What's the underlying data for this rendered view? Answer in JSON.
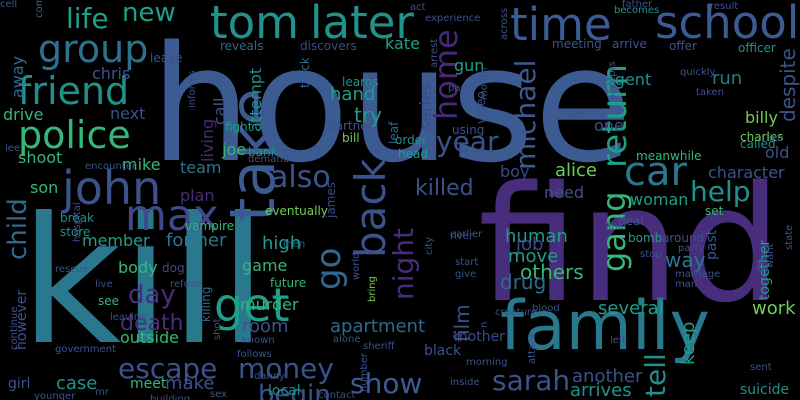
{
  "words": [
    {
      "text": "house",
      "color": "#3b5b92"
    },
    {
      "text": "kill",
      "color": "#2a788e"
    },
    {
      "text": "find",
      "color": "#472d7b"
    },
    {
      "text": "family",
      "color": "#2a788e"
    },
    {
      "text": "time",
      "color": "#3b5b92"
    },
    {
      "text": "school",
      "color": "#3b5b92"
    },
    {
      "text": "tom",
      "color": "#21918c"
    },
    {
      "text": "later",
      "color": "#21918c"
    },
    {
      "text": "group",
      "color": "#2c728e"
    },
    {
      "text": "friend",
      "color": "#21918c"
    },
    {
      "text": "police",
      "color": "#35b779"
    },
    {
      "text": "john",
      "color": "#3b528b"
    },
    {
      "text": "max",
      "color": "#3e4989"
    },
    {
      "text": "take",
      "color": "#3b5b92"
    },
    {
      "text": "get",
      "color": "#1f9e89"
    },
    {
      "text": "back",
      "color": "#3b528b"
    },
    {
      "text": "car",
      "color": "#2a788e"
    },
    {
      "text": "home",
      "color": "#482878"
    },
    {
      "text": "return",
      "color": "#1f9e89"
    },
    {
      "text": "gang",
      "color": "#35b779"
    },
    {
      "text": "help",
      "color": "#21918c"
    },
    {
      "text": "year",
      "color": "#3b528b"
    },
    {
      "text": "michael",
      "color": "#3b5b92"
    },
    {
      "text": "night",
      "color": "#472d7b"
    },
    {
      "text": "go",
      "color": "#31688e"
    },
    {
      "text": "also",
      "color": "#3b528b"
    },
    {
      "text": "escape",
      "color": "#3b528b"
    },
    {
      "text": "money",
      "color": "#3b528b"
    },
    {
      "text": "show",
      "color": "#3b5b92"
    },
    {
      "text": "sarah",
      "color": "#3b528b"
    },
    {
      "text": "tell",
      "color": "#21918c"
    },
    {
      "text": "begin",
      "color": "#3b528b"
    },
    {
      "text": "day",
      "color": "#472d7b"
    },
    {
      "text": "life",
      "color": "#1f9e89"
    },
    {
      "text": "new",
      "color": "#1f9e89"
    },
    {
      "text": "child",
      "color": "#31688e"
    },
    {
      "text": "killed",
      "color": "#3b528b"
    },
    {
      "text": "several",
      "color": "#1f9e89"
    },
    {
      "text": "another",
      "color": "#3b528b"
    },
    {
      "text": "arrives",
      "color": "#21918c"
    },
    {
      "text": "death",
      "color": "#472d7b"
    },
    {
      "text": "work",
      "color": "#6ece58"
    },
    {
      "text": "film",
      "color": "#3b528b"
    },
    {
      "text": "keep",
      "color": "#1f9e89"
    },
    {
      "text": "way",
      "color": "#2a788e"
    },
    {
      "text": "others",
      "color": "#35b779"
    },
    {
      "text": "drug",
      "color": "#31688e"
    },
    {
      "text": "human",
      "color": "#1f9e89"
    },
    {
      "text": "job",
      "color": "#3e4989"
    },
    {
      "text": "move",
      "color": "#1f9e89"
    },
    {
      "text": "apartment",
      "color": "#31688e"
    },
    {
      "text": "high",
      "color": "#1f9e89"
    },
    {
      "text": "room",
      "color": "#3b528b"
    },
    {
      "text": "former",
      "color": "#2a788e"
    },
    {
      "text": "make",
      "color": "#3b528b"
    },
    {
      "text": "case",
      "color": "#21918c"
    },
    {
      "text": "kate",
      "color": "#1f9e89"
    },
    {
      "text": "try",
      "color": "#1f9e89"
    },
    {
      "text": "hand",
      "color": "#1f9e89"
    },
    {
      "text": "alice",
      "color": "#6ece58"
    },
    {
      "text": "boy",
      "color": "#3e4989"
    },
    {
      "text": "woman",
      "color": "#1f9e89"
    },
    {
      "text": "character",
      "color": "#3b528b"
    },
    {
      "text": "billy",
      "color": "#6ece58"
    },
    {
      "text": "old",
      "color": "#3b528b"
    },
    {
      "text": "despite",
      "color": "#3b528b"
    },
    {
      "text": "agent",
      "color": "#21918c"
    },
    {
      "text": "run",
      "color": "#2a788e"
    },
    {
      "text": "one",
      "color": "#3b528b"
    },
    {
      "text": "need",
      "color": "#3b528b"
    },
    {
      "text": "series",
      "color": "#3e4989"
    },
    {
      "text": "gun",
      "color": "#1f9e89"
    },
    {
      "text": "plan",
      "color": "#472d7b"
    },
    {
      "text": "team",
      "color": "#2a788e"
    },
    {
      "text": "living",
      "color": "#482878"
    },
    {
      "text": "call",
      "color": "#3b528b"
    },
    {
      "text": "attempt",
      "color": "#21918c"
    },
    {
      "text": "joe",
      "color": "#35b779"
    },
    {
      "text": "chris",
      "color": "#3b528b"
    },
    {
      "text": "next",
      "color": "#3b528b"
    },
    {
      "text": "drive",
      "color": "#35b779"
    },
    {
      "text": "away",
      "color": "#31688e"
    },
    {
      "text": "shoot",
      "color": "#35b779"
    },
    {
      "text": "son",
      "color": "#35b779"
    },
    {
      "text": "mike",
      "color": "#35b779"
    },
    {
      "text": "member",
      "color": "#1f9e89"
    },
    {
      "text": "body",
      "color": "#35b779"
    },
    {
      "text": "game",
      "color": "#35b779"
    },
    {
      "text": "murder",
      "color": "#35b779"
    },
    {
      "text": "outside",
      "color": "#35b779"
    },
    {
      "text": "however",
      "color": "#3b528b"
    },
    {
      "text": "girl",
      "color": "#3b528b"
    },
    {
      "text": "meet",
      "color": "#35b779"
    },
    {
      "text": "local",
      "color": "#21918c"
    },
    {
      "text": "mother",
      "color": "#3e4989"
    },
    {
      "text": "black",
      "color": "#3b528b"
    },
    {
      "text": "suicide",
      "color": "#21918c"
    },
    {
      "text": "together",
      "color": "#1f9e89"
    },
    {
      "text": "past",
      "color": "#3b528b"
    },
    {
      "text": "dr",
      "color": "#3b528b"
    },
    {
      "text": "set",
      "color": "#35b779"
    },
    {
      "text": "bomb",
      "color": "#1f9e89"
    },
    {
      "text": "around",
      "color": "#3b528b"
    },
    {
      "text": "meanwhile",
      "color": "#35b779"
    },
    {
      "text": "deal",
      "color": "#3b528b"
    },
    {
      "text": "charles",
      "color": "#6ece58"
    },
    {
      "text": "called",
      "color": "#21918c"
    },
    {
      "text": "fight",
      "color": "#1f9e89"
    },
    {
      "text": "bank",
      "color": "#21918c"
    },
    {
      "text": "james",
      "color": "#3e4989"
    },
    {
      "text": "eventually",
      "color": "#6ece58"
    },
    {
      "text": "vampire",
      "color": "#35b779"
    },
    {
      "text": "break",
      "color": "#21918c"
    },
    {
      "text": "store",
      "color": "#21918c"
    },
    {
      "text": "dog",
      "color": "#3e4989"
    },
    {
      "text": "see",
      "color": "#35b779"
    },
    {
      "text": "killing",
      "color": "#31688e"
    },
    {
      "text": "future",
      "color": "#35b779"
    },
    {
      "text": "head",
      "color": "#1f9e89"
    },
    {
      "text": "leaf",
      "color": "#31688e"
    },
    {
      "text": "bill",
      "color": "#6ece58"
    },
    {
      "text": "order",
      "color": "#21918c"
    },
    {
      "text": "using",
      "color": "#3b528b"
    },
    {
      "text": "arrive",
      "color": "#3b528b"
    },
    {
      "text": "meeting",
      "color": "#3b528b"
    },
    {
      "text": "offer",
      "color": "#3b528b"
    },
    {
      "text": "officer",
      "color": "#21918c"
    },
    {
      "text": "reveals",
      "color": "#31688e"
    },
    {
      "text": "discovers",
      "color": "#3e4989"
    },
    {
      "text": "leave",
      "color": "#3b528b"
    },
    {
      "text": "learns",
      "color": "#21918c"
    },
    {
      "text": "truck",
      "color": "#31688e"
    },
    {
      "text": "partner",
      "color": "#3b528b"
    },
    {
      "text": "video",
      "color": "#3b528b"
    },
    {
      "text": "come",
      "color": "#31688e"
    },
    {
      "text": "act",
      "color": "#3b528b"
    },
    {
      "text": "experience",
      "color": "#3b528b"
    },
    {
      "text": "becomes",
      "color": "#21918c"
    },
    {
      "text": "father",
      "color": "#3b528b"
    },
    {
      "text": "result",
      "color": "#3b528b"
    },
    {
      "text": "arrest",
      "color": "#3b528b"
    },
    {
      "text": "month",
      "color": "#3b528b"
    },
    {
      "text": "across",
      "color": "#3b528b"
    },
    {
      "text": "quickly",
      "color": "#3b528b"
    },
    {
      "text": "taken",
      "color": "#3b528b"
    },
    {
      "text": "like",
      "color": "#3b528b"
    },
    {
      "text": "turn",
      "color": "#3b528b"
    },
    {
      "text": "accepts",
      "color": "#3b528b"
    },
    {
      "text": "informs",
      "color": "#3b528b"
    },
    {
      "text": "encounter",
      "color": "#3b528b"
    },
    {
      "text": "demand",
      "color": "#3b528b"
    },
    {
      "text": "refuse",
      "color": "#3b528b"
    },
    {
      "text": "men",
      "color": "#3b528b"
    },
    {
      "text": "rescue",
      "color": "#3b528b"
    },
    {
      "text": "hospital",
      "color": "#3b528b"
    },
    {
      "text": "live",
      "color": "#3b528b"
    },
    {
      "text": "leaving",
      "color": "#3b528b"
    },
    {
      "text": "shot",
      "color": "#3b528b"
    },
    {
      "text": "known",
      "color": "#3b528b"
    },
    {
      "text": "follows",
      "color": "#3b528b"
    },
    {
      "text": "alone",
      "color": "#3b528b"
    },
    {
      "text": "sheriff",
      "color": "#3b528b"
    },
    {
      "text": "bring",
      "color": "#6ece58"
    },
    {
      "text": "world",
      "color": "#3b528b"
    },
    {
      "text": "river",
      "color": "#3b528b"
    },
    {
      "text": "city",
      "color": "#3b528b"
    },
    {
      "text": "earlier",
      "color": "#3b528b"
    },
    {
      "text": "start",
      "color": "#3b528b"
    },
    {
      "text": "give",
      "color": "#3b528b"
    },
    {
      "text": "left",
      "color": "#3b528b"
    },
    {
      "text": "final",
      "color": "#3b528b"
    },
    {
      "text": "party",
      "color": "#3b528b"
    },
    {
      "text": "stop",
      "color": "#3b528b"
    },
    {
      "text": "marriage",
      "color": "#3b528b"
    },
    {
      "text": "man",
      "color": "#3b528b"
    },
    {
      "text": "want",
      "color": "#3b528b"
    },
    {
      "text": "state",
      "color": "#3b528b"
    },
    {
      "text": "creature",
      "color": "#3b528b"
    },
    {
      "text": "blood",
      "color": "#3b528b"
    },
    {
      "text": "attack",
      "color": "#3b528b"
    },
    {
      "text": "morning",
      "color": "#3b528b"
    },
    {
      "text": "inside",
      "color": "#3b528b"
    },
    {
      "text": "sent",
      "color": "#3b528b"
    },
    {
      "text": "contact",
      "color": "#3b528b"
    },
    {
      "text": "number",
      "color": "#3b528b"
    },
    {
      "text": "sex",
      "color": "#3b528b"
    },
    {
      "text": "building",
      "color": "#3b528b"
    },
    {
      "text": "younger",
      "color": "#3b528b"
    },
    {
      "text": "continue",
      "color": "#3b528b"
    },
    {
      "text": "government",
      "color": "#3b528b"
    },
    {
      "text": "lee",
      "color": "#3b528b"
    },
    {
      "text": "part",
      "color": "#3b528b"
    },
    {
      "text": "mr",
      "color": "#3b528b"
    },
    {
      "text": "danny",
      "color": "#3b528b"
    },
    {
      "text": "n",
      "color": "#3b528b"
    },
    {
      "text": "cell",
      "color": "#3b528b"
    }
  ]
}
